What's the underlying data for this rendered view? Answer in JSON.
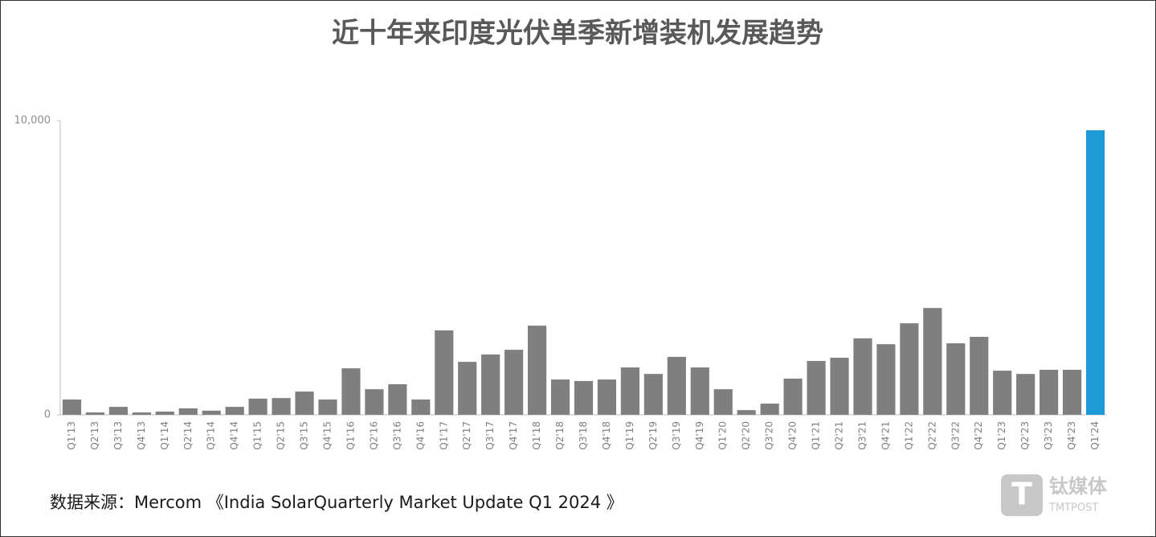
{
  "chart_data": {
    "type": "bar",
    "title": "近十年来印度光伏单季新增装机发展趋势",
    "source": "数据来源：Mercom 《India SolarQuarterly Market Update Q1 2024 》",
    "watermark": {
      "name": "钛媒体",
      "sub": "TMTPOST"
    },
    "categories": [
      "Q1'13",
      "Q2'13",
      "Q3'13",
      "Q4'13",
      "Q1'14",
      "Q2'14",
      "Q3'14",
      "Q4'14",
      "Q1'15",
      "Q2'15",
      "Q3'15",
      "Q4'15",
      "Q1'16",
      "Q2'16",
      "Q3'16",
      "Q4'16",
      "Q1'17",
      "Q2'17",
      "Q3'17",
      "Q4'17",
      "Q1'18",
      "Q2'18",
      "Q3'18",
      "Q4'18",
      "Q1'19",
      "Q2'19",
      "Q3'19",
      "Q4'19",
      "Q1'20",
      "Q2'20",
      "Q3'20",
      "Q4'20",
      "Q1'21",
      "Q2'21",
      "Q3'21",
      "Q4'21",
      "Q1'22",
      "Q2'22",
      "Q3'22",
      "Q4'22",
      "Q1'23",
      "Q2'23",
      "Q3'23",
      "Q4'23",
      "Q1'24"
    ],
    "values": [
      520,
      80,
      270,
      80,
      110,
      220,
      140,
      270,
      550,
      570,
      790,
      520,
      1580,
      870,
      1040,
      520,
      2870,
      1800,
      2050,
      2210,
      3030,
      1200,
      1150,
      1200,
      1610,
      1390,
      1970,
      1610,
      870,
      160,
      380,
      1230,
      1830,
      1940,
      2600,
      2400,
      3110,
      3630,
      2430,
      2650,
      1500,
      1390,
      1530,
      1530,
      9670
    ],
    "colors": [
      "#7f7f7f",
      "#7f7f7f",
      "#7f7f7f",
      "#7f7f7f",
      "#7f7f7f",
      "#7f7f7f",
      "#7f7f7f",
      "#7f7f7f",
      "#7f7f7f",
      "#7f7f7f",
      "#7f7f7f",
      "#7f7f7f",
      "#7f7f7f",
      "#7f7f7f",
      "#7f7f7f",
      "#7f7f7f",
      "#7f7f7f",
      "#7f7f7f",
      "#7f7f7f",
      "#7f7f7f",
      "#7f7f7f",
      "#7f7f7f",
      "#7f7f7f",
      "#7f7f7f",
      "#7f7f7f",
      "#7f7f7f",
      "#7f7f7f",
      "#7f7f7f",
      "#7f7f7f",
      "#7f7f7f",
      "#7f7f7f",
      "#7f7f7f",
      "#7f7f7f",
      "#7f7f7f",
      "#7f7f7f",
      "#7f7f7f",
      "#7f7f7f",
      "#7f7f7f",
      "#7f7f7f",
      "#7f7f7f",
      "#7f7f7f",
      "#7f7f7f",
      "#7f7f7f",
      "#7f7f7f",
      "#1e9ad6"
    ],
    "ylim": [
      0,
      10000
    ],
    "yticks": [
      0,
      {
        "value": 10000,
        "label": "10,000"
      }
    ]
  }
}
